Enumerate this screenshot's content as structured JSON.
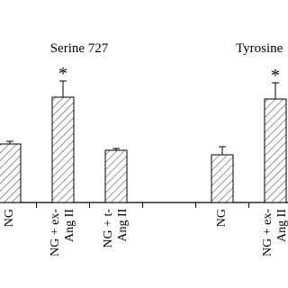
{
  "chart_data": {
    "type": "bar",
    "categories": [
      "NG",
      "NG + ex-\nAng II",
      "NG + t-\nAng II",
      null,
      "NG",
      "NG + ex-\nAng II"
    ],
    "values": [
      0.65,
      1.17,
      0.58,
      null,
      0.53,
      1.15
    ],
    "errors": [
      0.03,
      0.18,
      0.02,
      null,
      0.09,
      0.18
    ],
    "significance": [
      null,
      "*",
      null,
      null,
      null,
      "*"
    ],
    "groups": [
      "Serine 727",
      "Tyrosine"
    ],
    "ylim": [
      0,
      2.25
    ],
    "hatch": true
  }
}
